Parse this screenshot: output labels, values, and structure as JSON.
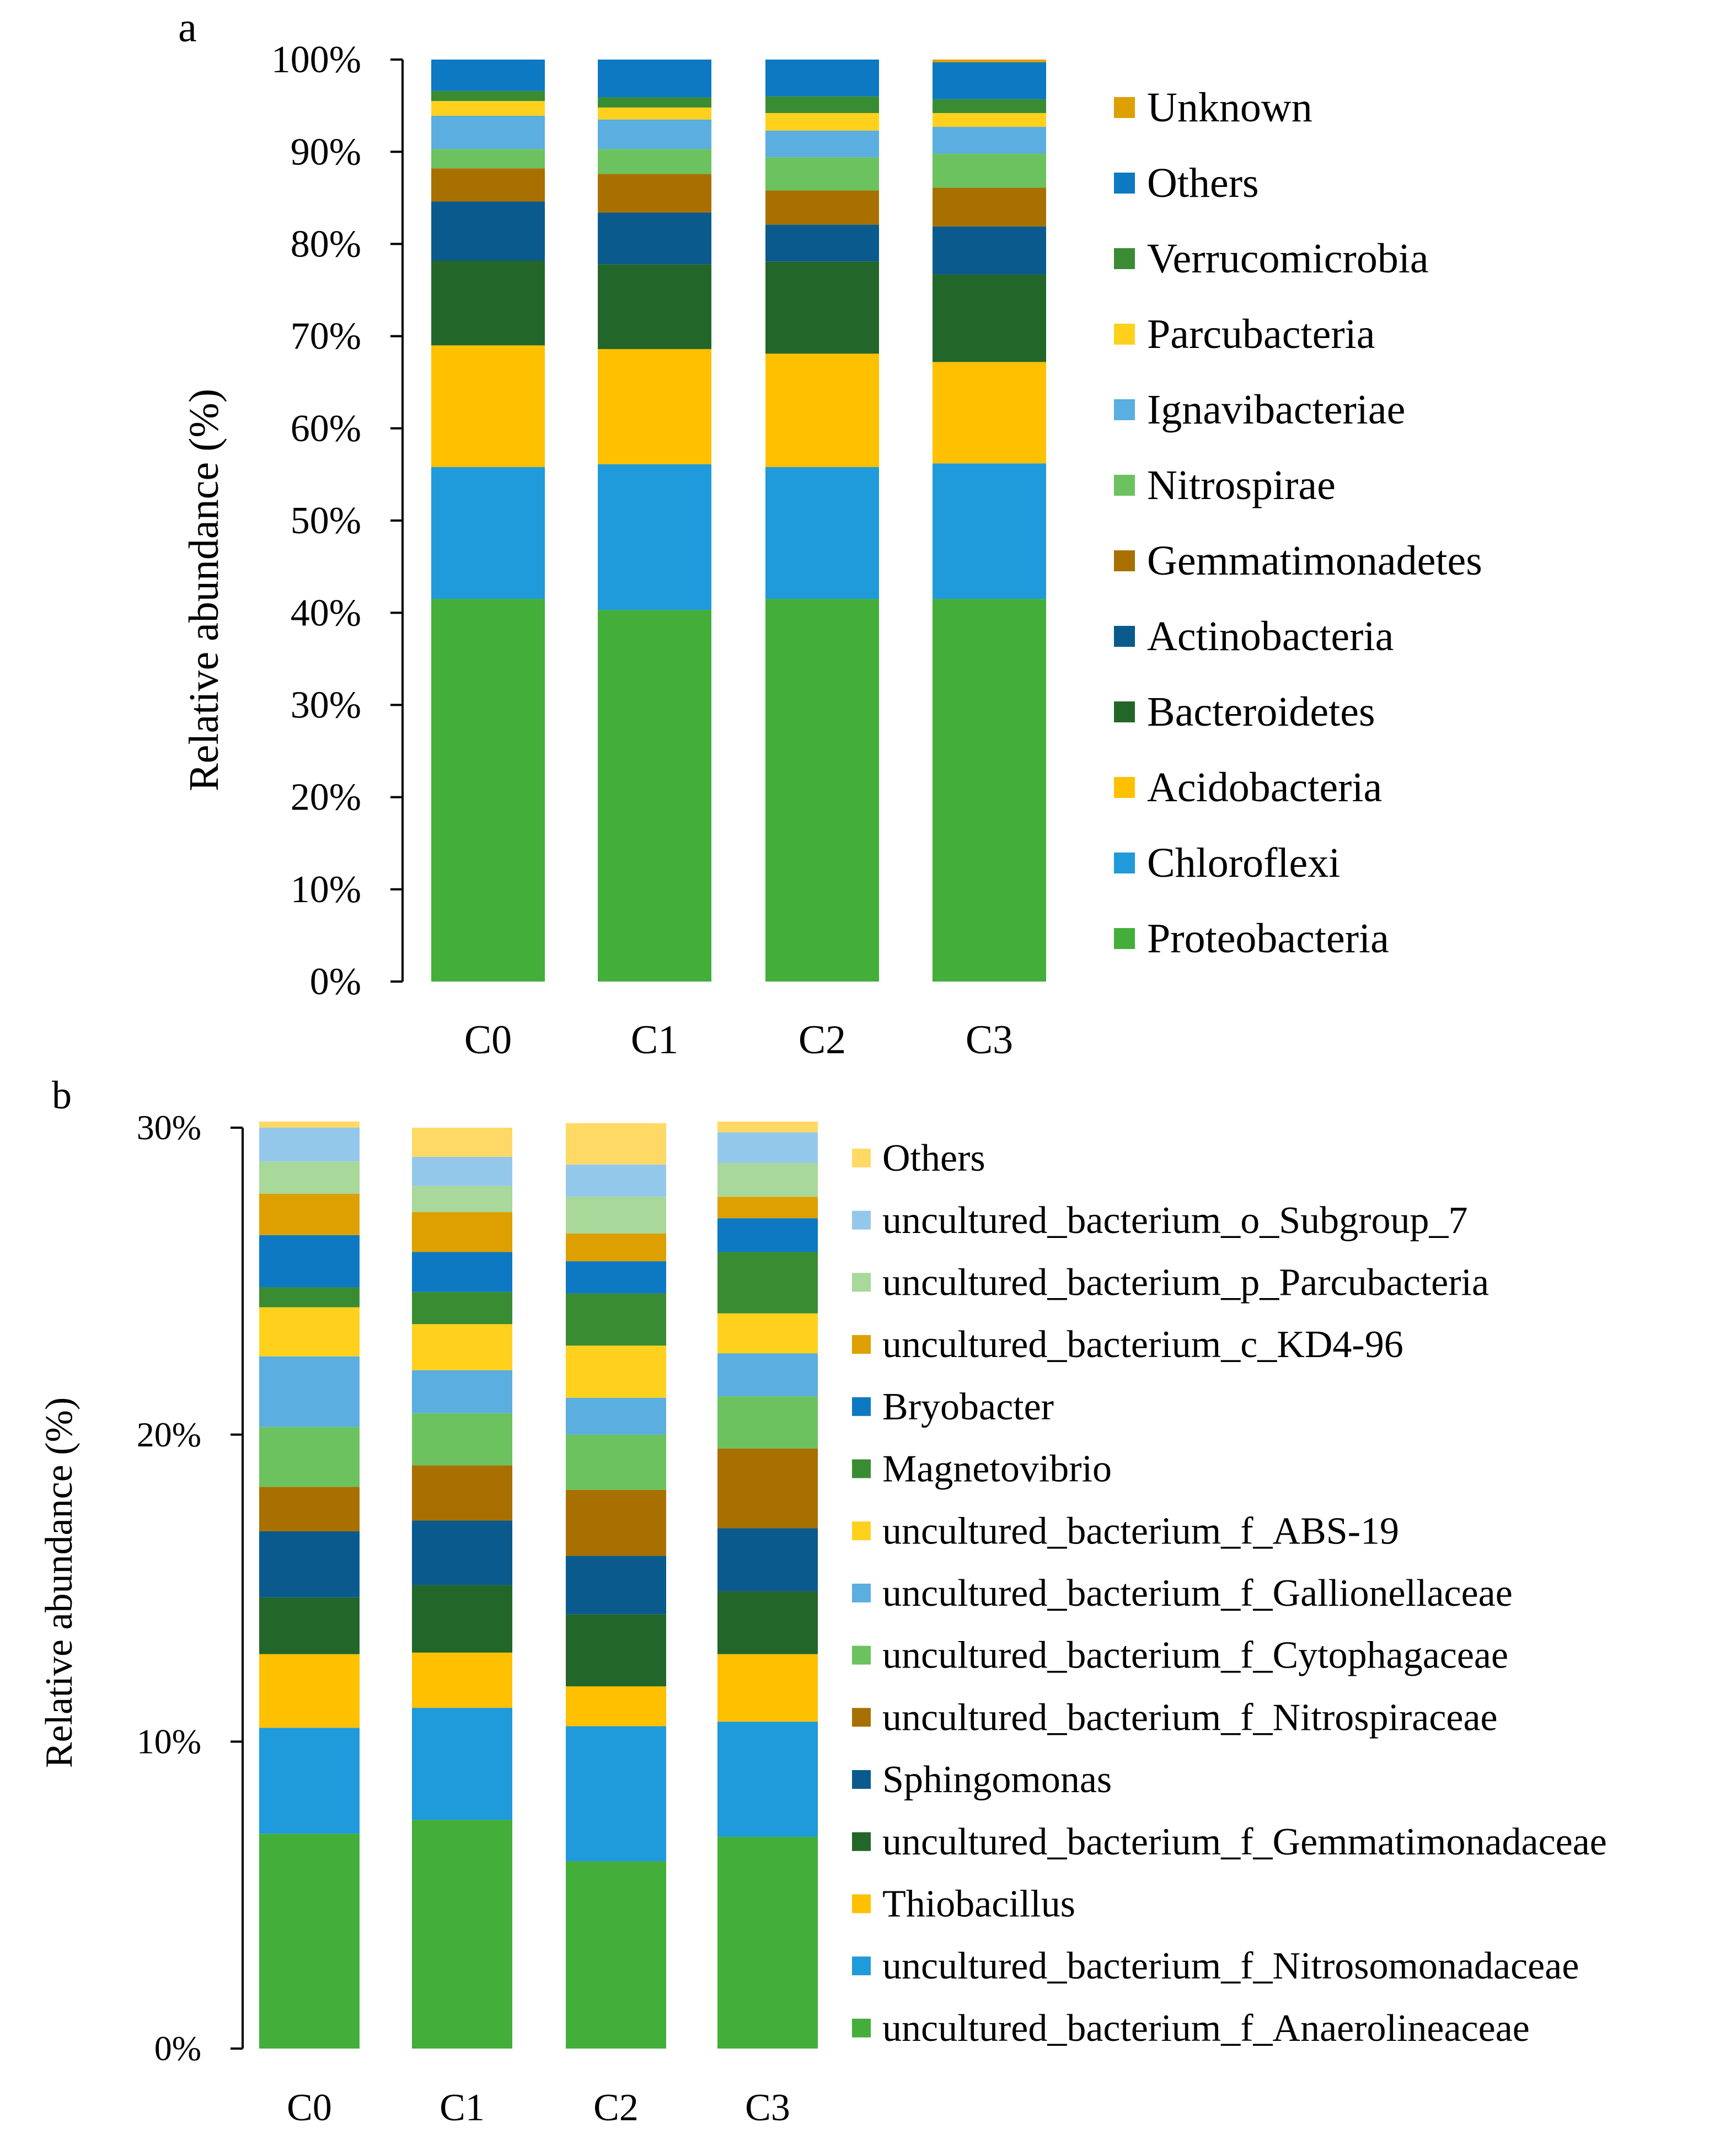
{
  "chart_data": [
    {
      "panel_label": "a",
      "type": "bar",
      "stacked": true,
      "title": "",
      "xlabel": "",
      "ylabel": "Relative abundance (%)",
      "ylim": [
        0,
        100
      ],
      "ytick_labels": [
        "0%",
        "10%",
        "20%",
        "30%",
        "40%",
        "50%",
        "60%",
        "70%",
        "80%",
        "90%",
        "100%"
      ],
      "categories": [
        "C0",
        "C1",
        "C2",
        "C3"
      ],
      "series": [
        {
          "name": "Proteobacteria",
          "color": "#43AE3A",
          "values": [
            41.5,
            40.3,
            41.5,
            41.5
          ]
        },
        {
          "name": "Chloroflexi",
          "color": "#1F9ADA",
          "values": [
            14.3,
            15.8,
            14.3,
            14.7
          ]
        },
        {
          "name": "Acidobacteria",
          "color": "#FFC000",
          "values": [
            13.2,
            12.5,
            12.3,
            11.0
          ]
        },
        {
          "name": "Bacteroidetes",
          "color": "#23662A",
          "values": [
            9.2,
            9.2,
            10.0,
            9.5
          ]
        },
        {
          "name": "Actinobacteria",
          "color": "#0A5A8E",
          "values": [
            6.4,
            5.6,
            4.0,
            5.2
          ]
        },
        {
          "name": "Gemmatimonadetes",
          "color": "#A87000",
          "values": [
            3.6,
            4.2,
            3.7,
            4.2
          ]
        },
        {
          "name": "Nitrospirae",
          "color": "#6CC25E",
          "values": [
            2.1,
            2.7,
            3.6,
            3.7
          ]
        },
        {
          "name": "Ignavibacteriae",
          "color": "#5AAEE0",
          "values": [
            3.6,
            3.2,
            2.9,
            2.9
          ]
        },
        {
          "name": "Parcubacteria",
          "color": "#FFD11C",
          "values": [
            1.6,
            1.3,
            1.9,
            1.5
          ]
        },
        {
          "name": "Verrucomicrobia",
          "color": "#3A8C33",
          "values": [
            1.1,
            1.1,
            1.8,
            1.5
          ]
        },
        {
          "name": "Others",
          "color": "#0C79C2",
          "values": [
            3.4,
            4.1,
            4.0,
            4.0
          ]
        },
        {
          "name": "Unknown",
          "color": "#DDA000",
          "values": [
            0.0,
            0.0,
            0.0,
            0.3
          ]
        }
      ]
    },
    {
      "panel_label": "b",
      "type": "bar",
      "stacked": true,
      "title": "",
      "xlabel": "",
      "ylabel": "Relative abundance (%)",
      "ylim": [
        0,
        30
      ],
      "ytick_labels": [
        "0%",
        "10%",
        "20%",
        "30%"
      ],
      "categories": [
        "C0",
        "C1",
        "C2",
        "C3"
      ],
      "series": [
        {
          "name": "uncultured_bacterium_f_Anaerolineaceae",
          "color": "#43AE3A",
          "values": [
            7.0,
            7.45,
            6.1,
            6.9
          ]
        },
        {
          "name": "uncultured_bacterium_f_Nitrosomonadaceae",
          "color": "#1F9ADA",
          "values": [
            3.45,
            3.65,
            4.4,
            3.75
          ]
        },
        {
          "name": "Thiobacillus",
          "color": "#FFC000",
          "values": [
            2.4,
            1.8,
            1.3,
            2.2
          ]
        },
        {
          "name": "uncultured_bacterium_f_Gemmatimonadaceae",
          "color": "#23662A",
          "values": [
            1.85,
            2.2,
            2.35,
            2.05
          ]
        },
        {
          "name": "Sphingomonas",
          "color": "#0A5A8E",
          "values": [
            2.15,
            2.1,
            1.9,
            2.05
          ]
        },
        {
          "name": "uncultured_bacterium_f_Nitrospiraceae",
          "color": "#A87000",
          "values": [
            1.45,
            1.8,
            2.15,
            2.6
          ]
        },
        {
          "name": "uncultured_bacterium_f_Cytophagaceae",
          "color": "#6CC25E",
          "values": [
            1.95,
            1.7,
            1.8,
            1.7
          ]
        },
        {
          "name": "uncultured_bacterium_f_Gallionellaceae",
          "color": "#5AAEE0",
          "values": [
            2.3,
            1.4,
            1.2,
            1.4
          ]
        },
        {
          "name": "uncultured_bacterium_f_ABS-19",
          "color": "#FFD11C",
          "values": [
            1.6,
            1.5,
            1.7,
            1.3
          ]
        },
        {
          "name": "Magnetovibrio",
          "color": "#3A8C33",
          "values": [
            0.65,
            1.05,
            1.7,
            2.0
          ]
        },
        {
          "name": "Bryobacter",
          "color": "#0C79C2",
          "values": [
            1.7,
            1.3,
            1.05,
            1.1
          ]
        },
        {
          "name": "uncultured_bacterium_c_KD4-96",
          "color": "#DDA000",
          "values": [
            1.35,
            1.3,
            0.9,
            0.7
          ]
        },
        {
          "name": "uncultured_bacterium_p_Parcubacteria",
          "color": "#A8D89A",
          "values": [
            1.05,
            0.85,
            1.2,
            1.1
          ]
        },
        {
          "name": "uncultured_bacterium_o_Subgroup_7",
          "color": "#94C8EA",
          "values": [
            1.1,
            0.95,
            1.05,
            1.0
          ]
        },
        {
          "name": "Others",
          "color": "#FFD966",
          "values": [
            0.2,
            0.95,
            1.35,
            0.35
          ]
        }
      ]
    }
  ]
}
